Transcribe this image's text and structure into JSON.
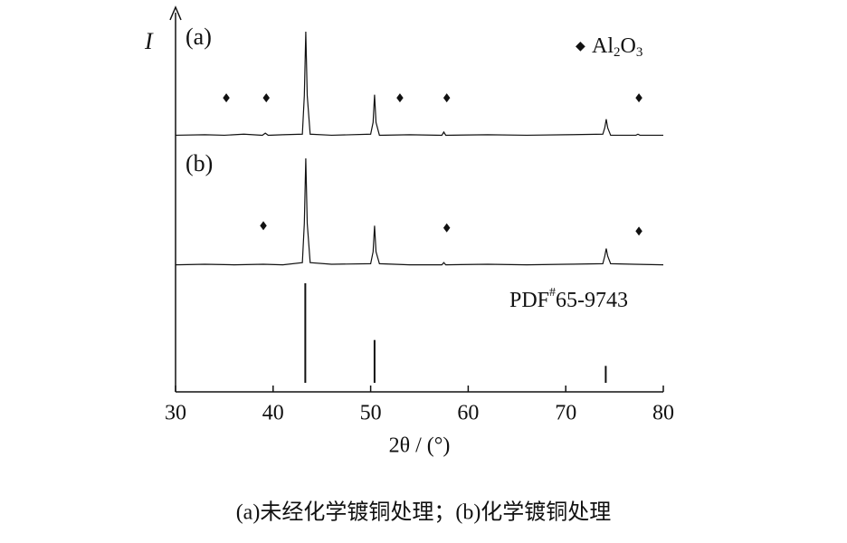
{
  "chart_data": [
    {
      "type": "line",
      "label": "(a)",
      "ylabel": "I",
      "legend_marker": "◆",
      "legend_parts": [
        "Al",
        "2",
        "O",
        "3"
      ],
      "ylim": [
        0,
        100
      ],
      "series": [
        {
          "color": "#111111",
          "x": [
            30,
            33,
            35,
            37,
            38.9,
            39.2,
            39.5,
            41,
            43,
            43.2,
            43.35,
            43.5,
            43.8,
            46,
            50,
            50.25,
            50.4,
            50.55,
            50.9,
            54,
            57.3,
            57.5,
            57.7,
            62,
            66,
            70,
            73.8,
            74.0,
            74.15,
            74.3,
            74.6,
            77.2,
            77.4,
            77.6,
            80
          ],
          "values": [
            3,
            3.5,
            3,
            4,
            3,
            5,
            3,
            3.5,
            4,
            40,
            100,
            40,
            4,
            3,
            4,
            15,
            41,
            15,
            3,
            3.5,
            3,
            6,
            3,
            3.5,
            3,
            3.5,
            4,
            10,
            18,
            10,
            3,
            3,
            4,
            3,
            3
          ]
        }
      ],
      "markers": {
        "color": "#111111",
        "x": [
          35.2,
          39.3,
          53,
          57.8,
          77.5
        ],
        "y": [
          38,
          38,
          38,
          38,
          38
        ]
      }
    },
    {
      "type": "line",
      "label": "(b)",
      "ylim": [
        0,
        100
      ],
      "series": [
        {
          "color": "#111111",
          "x": [
            30,
            33,
            36,
            39,
            41,
            43,
            43.2,
            43.35,
            43.5,
            43.8,
            46,
            50,
            50.25,
            50.4,
            50.55,
            50.9,
            54,
            57.3,
            57.5,
            57.7,
            62,
            66,
            70,
            73.8,
            74.0,
            74.15,
            74.3,
            74.6,
            77,
            80
          ],
          "values": [
            2,
            2.5,
            2,
            2.5,
            2,
            4,
            40,
            100,
            40,
            4,
            2.5,
            3,
            14,
            38,
            14,
            3,
            2,
            2,
            4,
            2,
            2.5,
            2,
            2.5,
            3,
            10,
            17,
            10,
            3,
            2.5,
            2
          ]
        }
      ],
      "markers": {
        "color": "#111111",
        "x": [
          39,
          57.8,
          77.5
        ],
        "y": [
          38,
          36,
          33
        ]
      }
    },
    {
      "type": "bar",
      "label_parts": [
        "PDF",
        "#",
        "65-9743"
      ],
      "ylim": [
        0,
        100
      ],
      "color": "#111111",
      "x": [
        43.3,
        50.4,
        74.1
      ],
      "values": [
        100,
        43,
        17
      ],
      "xlim": [
        30,
        80
      ],
      "xticks": [
        30,
        40,
        50,
        60,
        70,
        80
      ],
      "xlabel": "2θ / (°)"
    }
  ],
  "caption": "(a)未经化学镀铜处理；(b)化学镀铜处理"
}
